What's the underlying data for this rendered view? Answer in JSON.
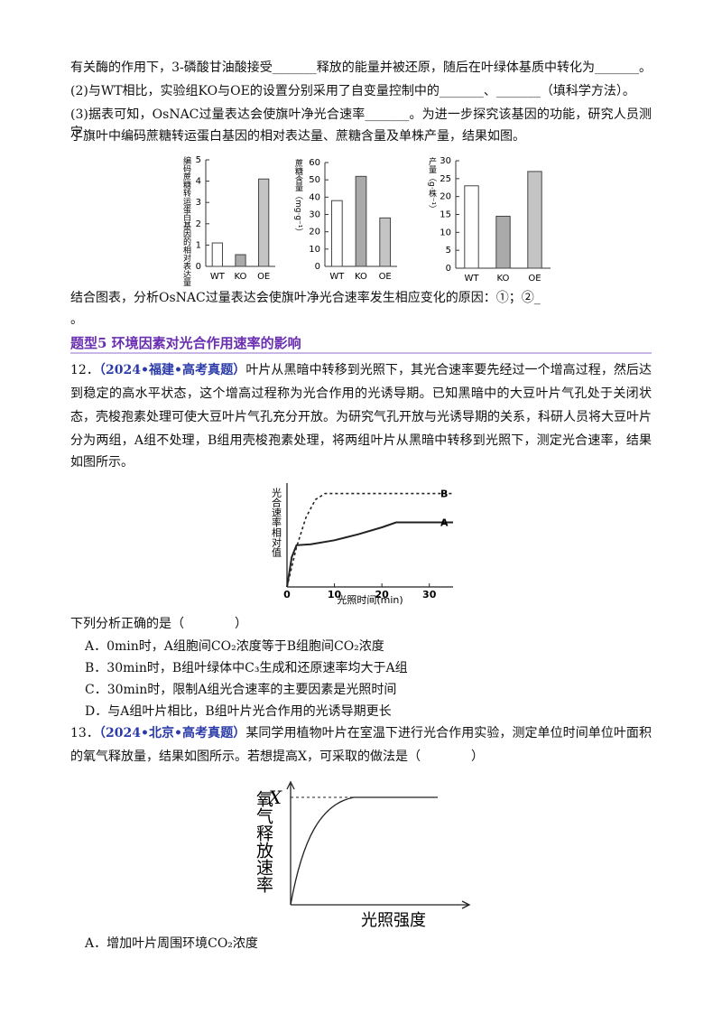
{
  "q11": {
    "lines": [
      "有关酶的作用下，3-磷酸甘油酸接受_______释放的能量并被还原，随后在叶绿体基质中转化为_______。",
      "(2)与WT相比，实验组KO与OE的设置分别采用了自变量控制中的_______、_______（填科学方法）。",
      "(3)据表可知，OsNAC过量表达会使旗叶净光合速率_______。为进一步探究该基因的功能，研究人员测定",
      "了旗叶中编码蔗糖转运蛋白基因的相对表达量、蔗糖含量及单株产量，结果如图。"
    ],
    "figure": [
      {
        "type": "bar",
        "ylabel": "编码蔗糖转运蛋白基因的相对表达量",
        "categories": [
          "WT",
          "KO",
          "OE"
        ],
        "values": [
          1.1,
          0.55,
          4.1
        ],
        "colors": [
          "#ffffff",
          "#aaaaaa",
          "#c4c4c4"
        ],
        "ylim": [
          0,
          5
        ],
        "yticks": [
          0,
          1,
          2,
          3,
          4,
          5
        ]
      },
      {
        "type": "bar",
        "ylabel": "蔗糖含量（mg·g⁻¹）",
        "categories": [
          "WT",
          "KO",
          "OE"
        ],
        "values": [
          38,
          52,
          28
        ],
        "colors": [
          "#ffffff",
          "#aaaaaa",
          "#c4c4c4"
        ],
        "ylim": [
          0,
          60
        ],
        "yticks": [
          0,
          10,
          20,
          30,
          40,
          50,
          60
        ]
      },
      {
        "type": "bar",
        "ylabel": "产量（g·株⁻¹）",
        "categories": [
          "WT",
          "KO",
          "OE"
        ],
        "values": [
          23,
          14.5,
          27
        ],
        "colors": [
          "#ffffff",
          "#aaaaaa",
          "#c4c4c4"
        ],
        "ylim": [
          0,
          30
        ],
        "yticks": [
          0,
          5,
          10,
          15,
          20,
          25,
          30
        ]
      }
    ],
    "after": [
      "结合图表，分析OsNAC过量表达会使旗叶净光合速率发生相应变化的原因：①；②_",
      "。"
    ]
  },
  "heading": "题型5 环境因素对光合作用速率的影响",
  "q12": {
    "number": "12．",
    "source": "（2024•福建•高考真题）",
    "lines": [
      "叶片从黑暗中转移到光照下，其光合速率要先经过一个增高过程，然后达",
      "到稳定的高水平状态，这个增高过程称为光合作用的光诱导期。已知黑暗中的大豆叶片气孔处于关闭状",
      "态，壳梭孢素处理可使大豆叶片气孔充分开放。为研究气孔开放与光诱导期的关系，科研人员将大豆叶片",
      "分为两组，A组不处理，B组用壳梭孢素处理，将两组叶片从黑暗中转移到光照下，测定光合速率，结果",
      "如图所示。"
    ],
    "chart": {
      "type": "line",
      "ylabel": "光合速率相对值",
      "xlabel": "光照时间(min)",
      "xlim": [
        0,
        35
      ],
      "xticks": [
        0,
        10,
        20,
        30
      ],
      "ylim": [
        0,
        100
      ],
      "series": [
        {
          "name": "B",
          "color": "#222",
          "dashed": true,
          "x": [
            0,
            2,
            4,
            6,
            8,
            35
          ],
          "values": [
            0,
            40,
            70,
            88,
            94,
            94
          ]
        },
        {
          "name": "A",
          "color": "#222",
          "dashed": false,
          "x": [
            0,
            1,
            2,
            5,
            10,
            15,
            20,
            23,
            35
          ],
          "values": [
            0,
            30,
            42,
            43,
            47,
            53,
            60,
            65,
            65
          ]
        }
      ]
    },
    "question": "下列分析正确的是（　　　　）",
    "options": [
      "A．0min时，A组胞间CO₂浓度等于B组胞间CO₂浓度",
      "B．30min时，B组叶绿体中C₃生成和还原速率均大于A组",
      "C．30min时，限制A组光合速率的主要因素是光照时间",
      "D．与A组叶片相比，B组叶片光合作用的光诱导期更长"
    ]
  },
  "q13": {
    "number": "13．",
    "source": "（2024•北京•高考真题）",
    "lines": [
      "某同学用植物叶片在室温下进行光合作用实验，测定单位时间单位叶面积",
      "的氧气释放量，结果如图所示。若想提高X，可采取的做法是（　　　　）"
    ],
    "figure": {
      "ylabel": "氧气释放速率",
      "xlabel": "光照强度",
      "mark": "X"
    },
    "options": [
      "A．增加叶片周围环境CO₂浓度"
    ]
  }
}
